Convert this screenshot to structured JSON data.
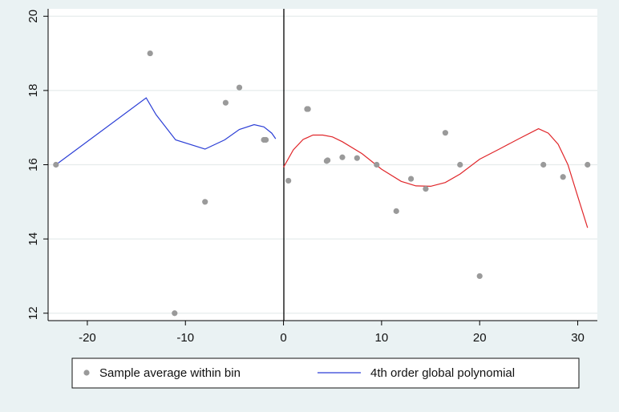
{
  "chart_data": {
    "type": "scatter",
    "title": "",
    "xlabel": "",
    "ylabel": "",
    "xlim": [
      -24,
      32
    ],
    "ylim": [
      11.8,
      20.2
    ],
    "x_ticks": [
      -20,
      -10,
      0,
      10,
      20,
      30
    ],
    "y_ticks": [
      12,
      14,
      16,
      18,
      20
    ],
    "x_tick_labels": [
      "-20",
      "-10",
      "0",
      "10",
      "20",
      "30"
    ],
    "y_tick_labels": [
      "12",
      "14",
      "16",
      "18",
      "20"
    ],
    "grid": "horizontal",
    "cutoff_x": 0,
    "legend_position": "bottom",
    "colors": {
      "background": "#eaf2f3",
      "plot_area": "#ffffff",
      "grid": "#e6ecec",
      "points": "#9a9a9a",
      "fit_left": "#2c3fd6",
      "fit_right": "#e0262a",
      "cutoff": "#000000"
    },
    "series": [
      {
        "name": "Sample average within bin",
        "kind": "scatter",
        "points": [
          [
            -23.2,
            16.0
          ],
          [
            -13.6,
            19.0
          ],
          [
            -11.1,
            12.0
          ],
          [
            -8.0,
            15.0
          ],
          [
            -5.9,
            17.67
          ],
          [
            -4.5,
            18.08
          ],
          [
            -2.0,
            16.67
          ],
          [
            -1.8,
            16.67
          ],
          [
            0.5,
            15.57
          ],
          [
            2.4,
            17.5
          ],
          [
            2.5,
            17.5
          ],
          [
            4.4,
            16.1
          ],
          [
            4.5,
            16.12
          ],
          [
            6.0,
            16.2
          ],
          [
            7.5,
            16.18
          ],
          [
            9.5,
            16.0
          ],
          [
            11.5,
            14.75
          ],
          [
            13.0,
            15.62
          ],
          [
            14.5,
            15.35
          ],
          [
            16.5,
            16.86
          ],
          [
            18.0,
            16.0
          ],
          [
            20.0,
            13.0
          ],
          [
            26.5,
            16.0
          ],
          [
            28.5,
            15.67
          ],
          [
            31.0,
            16.0
          ]
        ]
      },
      {
        "name": "4th order global polynomial",
        "kind": "line",
        "side": "left",
        "points": [
          [
            -23.2,
            16.0
          ],
          [
            -14.0,
            17.8
          ],
          [
            -13.0,
            17.35
          ],
          [
            -11.0,
            16.67
          ],
          [
            -8.0,
            16.42
          ],
          [
            -6.0,
            16.67
          ],
          [
            -4.5,
            16.95
          ],
          [
            -3.0,
            17.08
          ],
          [
            -2.0,
            17.02
          ],
          [
            -1.2,
            16.85
          ],
          [
            -0.8,
            16.7
          ]
        ]
      },
      {
        "kind": "line",
        "side": "right",
        "points": [
          [
            0.0,
            15.93
          ],
          [
            1.0,
            16.4
          ],
          [
            2.0,
            16.68
          ],
          [
            3.0,
            16.8
          ],
          [
            4.0,
            16.8
          ],
          [
            5.0,
            16.75
          ],
          [
            6.0,
            16.62
          ],
          [
            8.0,
            16.3
          ],
          [
            10.0,
            15.88
          ],
          [
            12.0,
            15.55
          ],
          [
            13.5,
            15.43
          ],
          [
            15.0,
            15.42
          ],
          [
            16.5,
            15.52
          ],
          [
            18.0,
            15.75
          ],
          [
            20.0,
            16.15
          ],
          [
            22.0,
            16.42
          ],
          [
            24.0,
            16.7
          ],
          [
            26.0,
            16.97
          ],
          [
            27.0,
            16.85
          ],
          [
            28.0,
            16.55
          ],
          [
            29.0,
            16.0
          ],
          [
            30.0,
            15.15
          ],
          [
            31.0,
            14.3
          ]
        ]
      }
    ]
  }
}
